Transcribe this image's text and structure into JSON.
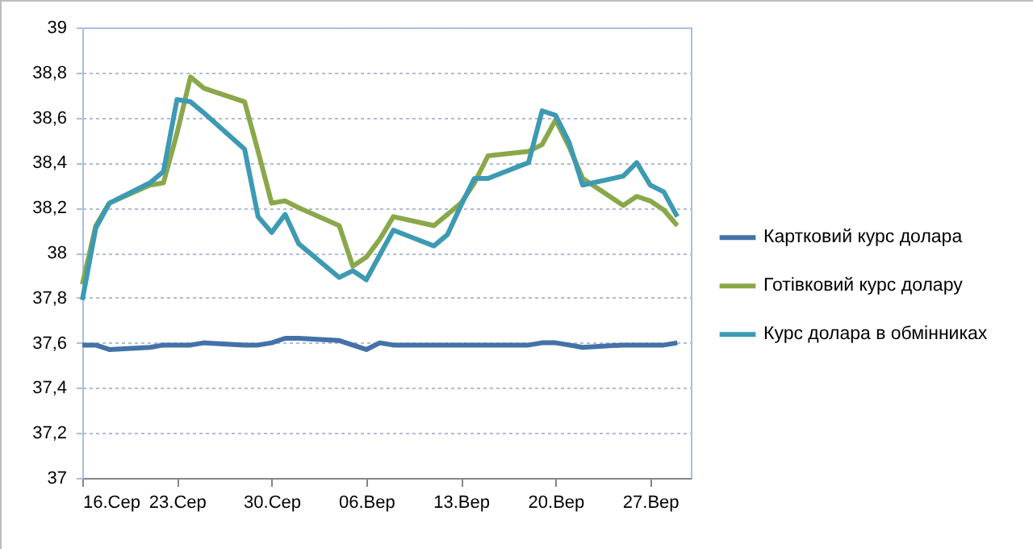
{
  "chart_data": {
    "type": "line",
    "x": [
      "--08-16",
      "--08-17",
      "--08-18",
      "--08-21",
      "--08-22",
      "--08-23",
      "--08-24",
      "--08-25",
      "--08-28",
      "--08-29",
      "--08-30",
      "--08-31",
      "--09-01",
      "--09-04",
      "--09-05",
      "--09-06",
      "--09-07",
      "--09-08",
      "--09-11",
      "--09-12",
      "--09-13",
      "--09-14",
      "--09-15",
      "--09-18",
      "--09-19",
      "--09-20",
      "--09-21",
      "--09-22",
      "--09-25",
      "--09-26",
      "--09-27",
      "--09-28",
      "--09-29"
    ],
    "series": [
      {
        "name": "Картковий курс долара",
        "color": "#4472a8",
        "values": [
          37.59,
          37.59,
          37.57,
          37.58,
          37.59,
          37.59,
          37.59,
          37.6,
          37.59,
          37.59,
          37.6,
          37.62,
          37.62,
          37.61,
          37.59,
          37.57,
          37.6,
          37.59,
          37.59,
          37.59,
          37.59,
          37.59,
          37.59,
          37.59,
          37.6,
          37.6,
          37.59,
          37.58,
          37.59,
          37.59,
          37.59,
          37.59,
          37.6
        ]
      },
      {
        "name": "Готівковий курс долару",
        "color": "#8aa84a",
        "values": [
          37.86,
          38.12,
          38.22,
          38.3,
          38.31,
          38.53,
          38.78,
          38.73,
          38.67,
          38.45,
          38.22,
          38.23,
          38.2,
          38.12,
          37.94,
          37.98,
          38.06,
          38.16,
          38.12,
          38.17,
          38.22,
          38.31,
          38.43,
          38.45,
          38.48,
          38.59,
          38.47,
          38.33,
          38.21,
          38.25,
          38.23,
          38.19,
          38.12
        ]
      },
      {
        "name": "Курс долара в обмінниках",
        "color": "#3d9ab3",
        "values": [
          37.79,
          38.11,
          38.22,
          38.31,
          38.36,
          38.68,
          38.67,
          38.62,
          38.46,
          38.16,
          38.09,
          38.17,
          38.04,
          37.89,
          37.92,
          37.88,
          37.99,
          38.1,
          38.03,
          38.08,
          38.21,
          38.33,
          38.33,
          38.4,
          38.63,
          38.61,
          38.49,
          38.3,
          38.34,
          38.4,
          38.3,
          38.27,
          38.16
        ]
      }
    ],
    "xlim": [
      "--08-16",
      "--09-30"
    ],
    "xticks": [
      {
        "value": "--08-16",
        "label": "16.Сер"
      },
      {
        "value": "--08-23",
        "label": "23.Сер"
      },
      {
        "value": "--08-30",
        "label": "30.Сер"
      },
      {
        "value": "--09-06",
        "label": "06.Вер"
      },
      {
        "value": "--09-13",
        "label": "13.Вер"
      },
      {
        "value": "--09-20",
        "label": "20.Вер"
      },
      {
        "value": "--09-27",
        "label": "27.Вер"
      }
    ],
    "ylim": [
      37,
      39
    ],
    "yticks": [
      37,
      {
        "value": 37.2,
        "label": "37,2"
      },
      {
        "value": 37.4,
        "label": "37,4"
      },
      {
        "value": 37.6,
        "label": "37,6"
      },
      {
        "value": 37.8,
        "label": "37,8"
      },
      38,
      {
        "value": 38.2,
        "label": "38,2"
      },
      {
        "value": 38.4,
        "label": "38,4"
      },
      {
        "value": 38.6,
        "label": "38,6"
      },
      {
        "value": 38.8,
        "label": "38,8"
      },
      39
    ],
    "grid": "y",
    "legend": "right"
  }
}
